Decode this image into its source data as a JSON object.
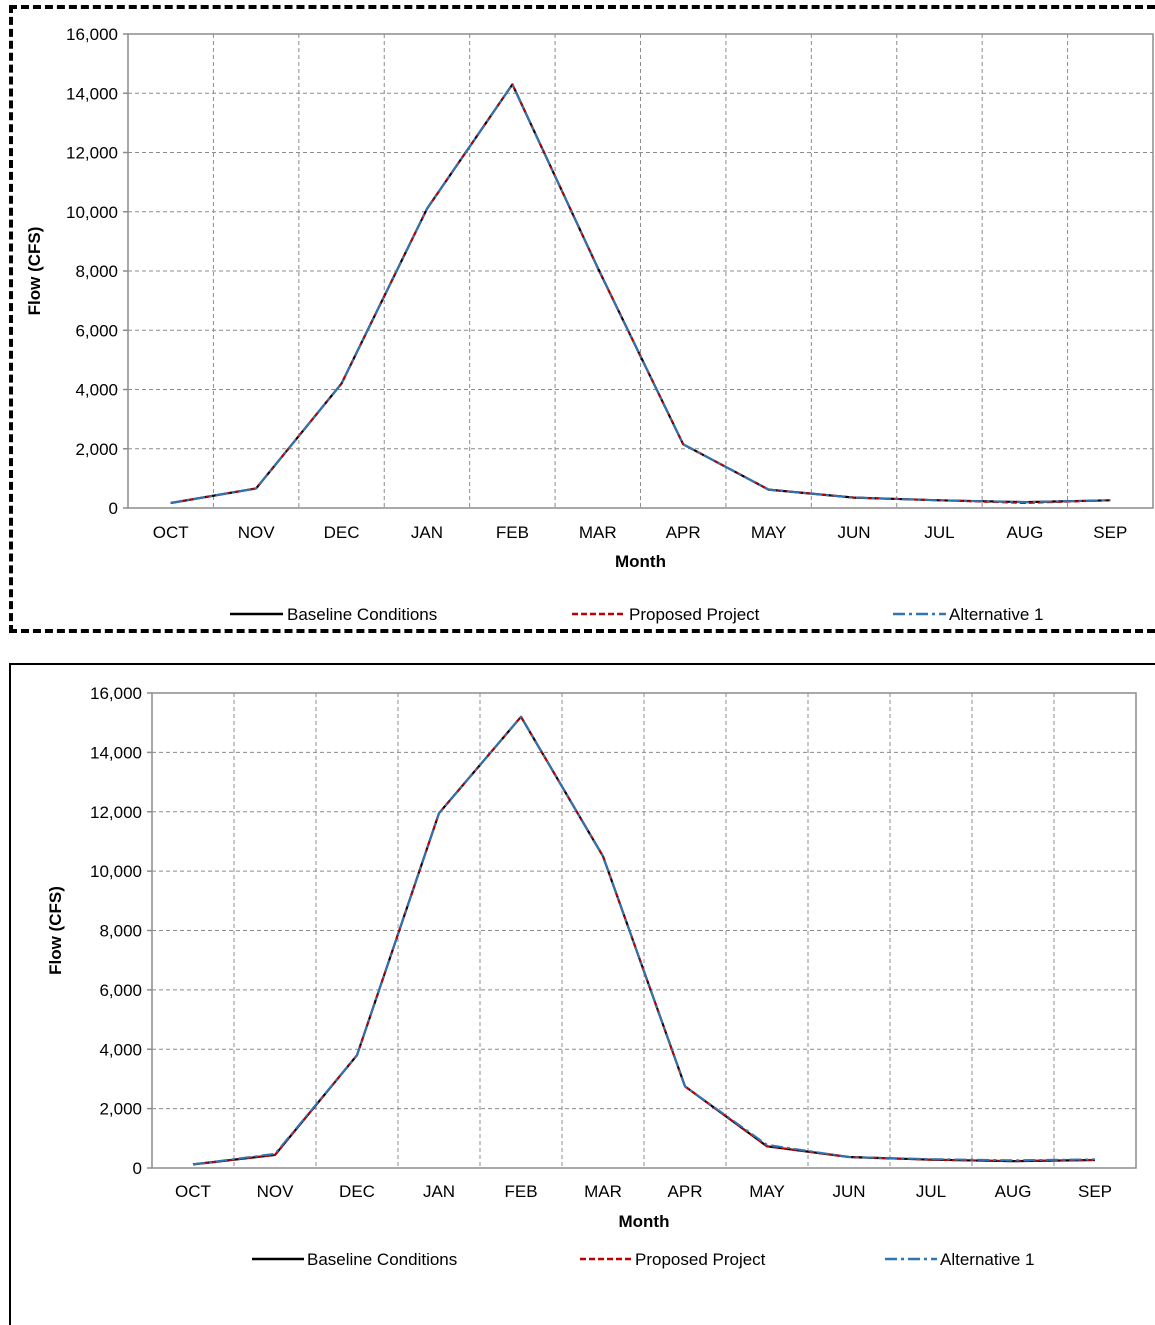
{
  "colors": {
    "baseline": "#000000",
    "proposed": "#c00000",
    "alternative": "#2e75b6",
    "grid": "#8c8c8c",
    "frame": "#8c8c8c"
  },
  "chart_data": [
    {
      "type": "line",
      "title": "",
      "xlabel": "Month",
      "ylabel": "Flow (CFS)",
      "ylim": [
        0,
        16000
      ],
      "yticks": [
        0,
        2000,
        4000,
        6000,
        8000,
        10000,
        12000,
        14000,
        16000
      ],
      "ytick_labels": [
        "0",
        "2,000",
        "4,000",
        "6,000",
        "8,000",
        "10,000",
        "12,000",
        "14,000",
        "16,000"
      ],
      "categories": [
        "OCT",
        "NOV",
        "DEC",
        "JAN",
        "FEB",
        "MAR",
        "APR",
        "MAY",
        "JUN",
        "JUL",
        "AUG",
        "SEP"
      ],
      "grid": true,
      "legend": "bottom",
      "series": [
        {
          "name": "Baseline Conditions",
          "style": "solid",
          "values": [
            170,
            660,
            4200,
            10100,
            14300,
            8100,
            2150,
            620,
            350,
            260,
            200,
            260
          ]
        },
        {
          "name": "Proposed Project",
          "style": "dashed",
          "values": [
            170,
            660,
            4200,
            10100,
            14300,
            8100,
            2150,
            620,
            350,
            260,
            170,
            260
          ]
        },
        {
          "name": "Alternative 1",
          "style": "dashdot",
          "values": [
            170,
            660,
            4200,
            10100,
            14300,
            8100,
            2150,
            620,
            350,
            260,
            200,
            260
          ]
        }
      ]
    },
    {
      "type": "line",
      "title": "",
      "xlabel": "Month",
      "ylabel": "Flow (CFS)",
      "ylim": [
        0,
        16000
      ],
      "yticks": [
        0,
        2000,
        4000,
        6000,
        8000,
        10000,
        12000,
        14000,
        16000
      ],
      "ytick_labels": [
        "0",
        "2,000",
        "4,000",
        "6,000",
        "8,000",
        "10,000",
        "12,000",
        "14,000",
        "16,000"
      ],
      "categories": [
        "OCT",
        "NOV",
        "DEC",
        "JAN",
        "FEB",
        "MAR",
        "APR",
        "MAY",
        "JUN",
        "JUL",
        "AUG",
        "SEP"
      ],
      "grid": true,
      "legend": "bottom",
      "series": [
        {
          "name": "Baseline Conditions",
          "style": "solid",
          "values": [
            120,
            440,
            3800,
            11950,
            15200,
            10500,
            2750,
            730,
            370,
            280,
            230,
            270
          ]
        },
        {
          "name": "Proposed Project",
          "style": "dashed",
          "values": [
            120,
            440,
            3800,
            11950,
            15200,
            10500,
            2750,
            730,
            370,
            280,
            230,
            270
          ]
        },
        {
          "name": "Alternative 1",
          "style": "dashdot",
          "values": [
            120,
            480,
            3800,
            11950,
            15200,
            10500,
            2750,
            780,
            370,
            300,
            260,
            290
          ]
        }
      ]
    }
  ]
}
